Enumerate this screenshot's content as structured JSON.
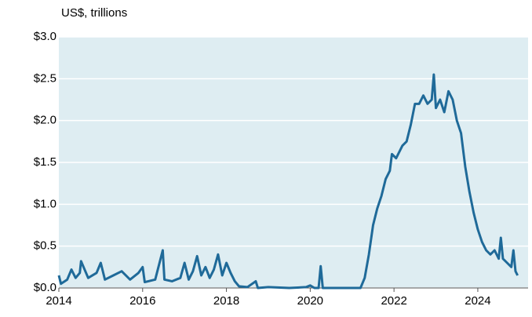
{
  "chart_data": {
    "type": "line",
    "subtitle": "US$, trillions",
    "xlim": [
      2014,
      2025.2
    ],
    "xticks": [
      2014,
      2016,
      2018,
      2020,
      2022,
      2024
    ],
    "ylim": [
      0,
      3
    ],
    "yticks": [
      {
        "value": 0,
        "label": "$0.0"
      },
      {
        "value": 0.5,
        "label": "$0.5"
      },
      {
        "value": 1,
        "label": "$1.0"
      },
      {
        "value": 1.5,
        "label": "$1.5"
      },
      {
        "value": 2,
        "label": "$2.0"
      },
      {
        "value": 2.5,
        "label": "$2.5"
      },
      {
        "value": 3,
        "label": "$3.0"
      }
    ],
    "grid": true,
    "background": "#deedf2",
    "color": "#1f6a99",
    "x": [
      2014.0,
      2014.05,
      2014.2,
      2014.3,
      2014.4,
      2014.5,
      2014.53,
      2014.7,
      2014.9,
      2015.0,
      2015.1,
      2015.3,
      2015.5,
      2015.7,
      2015.9,
      2016.0,
      2016.05,
      2016.3,
      2016.48,
      2016.52,
      2016.7,
      2016.9,
      2017.0,
      2017.1,
      2017.2,
      2017.3,
      2017.4,
      2017.5,
      2017.6,
      2017.7,
      2017.8,
      2017.9,
      2018.0,
      2018.1,
      2018.2,
      2018.3,
      2018.5,
      2018.7,
      2018.75,
      2019.0,
      2019.5,
      2019.9,
      2020.0,
      2020.1,
      2020.2,
      2020.25,
      2020.3,
      2020.6,
      2021.0,
      2021.2,
      2021.3,
      2021.4,
      2021.5,
      2021.6,
      2021.7,
      2021.8,
      2021.9,
      2021.95,
      2022.05,
      2022.2,
      2022.3,
      2022.4,
      2022.5,
      2022.6,
      2022.7,
      2022.8,
      2022.9,
      2022.95,
      2023.0,
      2023.1,
      2023.2,
      2023.3,
      2023.4,
      2023.5,
      2023.6,
      2023.7,
      2023.8,
      2023.9,
      2024.0,
      2024.1,
      2024.2,
      2024.3,
      2024.4,
      2024.5,
      2024.55,
      2024.6,
      2024.7,
      2024.8,
      2024.85,
      2024.9,
      2024.95
    ],
    "values": [
      0.15,
      0.05,
      0.1,
      0.22,
      0.12,
      0.18,
      0.32,
      0.12,
      0.18,
      0.3,
      0.1,
      0.15,
      0.2,
      0.1,
      0.18,
      0.25,
      0.07,
      0.1,
      0.45,
      0.1,
      0.08,
      0.12,
      0.3,
      0.1,
      0.2,
      0.38,
      0.15,
      0.25,
      0.12,
      0.22,
      0.4,
      0.15,
      0.3,
      0.18,
      0.08,
      0.02,
      0.01,
      0.08,
      0.0,
      0.01,
      0.0,
      0.01,
      0.03,
      0.0,
      0.0,
      0.26,
      0.0,
      0.0,
      0.0,
      0.0,
      0.12,
      0.4,
      0.75,
      0.95,
      1.1,
      1.3,
      1.4,
      1.6,
      1.55,
      1.7,
      1.75,
      1.95,
      2.2,
      2.2,
      2.3,
      2.2,
      2.25,
      2.55,
      2.15,
      2.25,
      2.1,
      2.35,
      2.25,
      2.0,
      1.85,
      1.45,
      1.15,
      0.9,
      0.7,
      0.55,
      0.45,
      0.4,
      0.45,
      0.35,
      0.6,
      0.35,
      0.3,
      0.25,
      0.45,
      0.2,
      0.15
    ]
  }
}
